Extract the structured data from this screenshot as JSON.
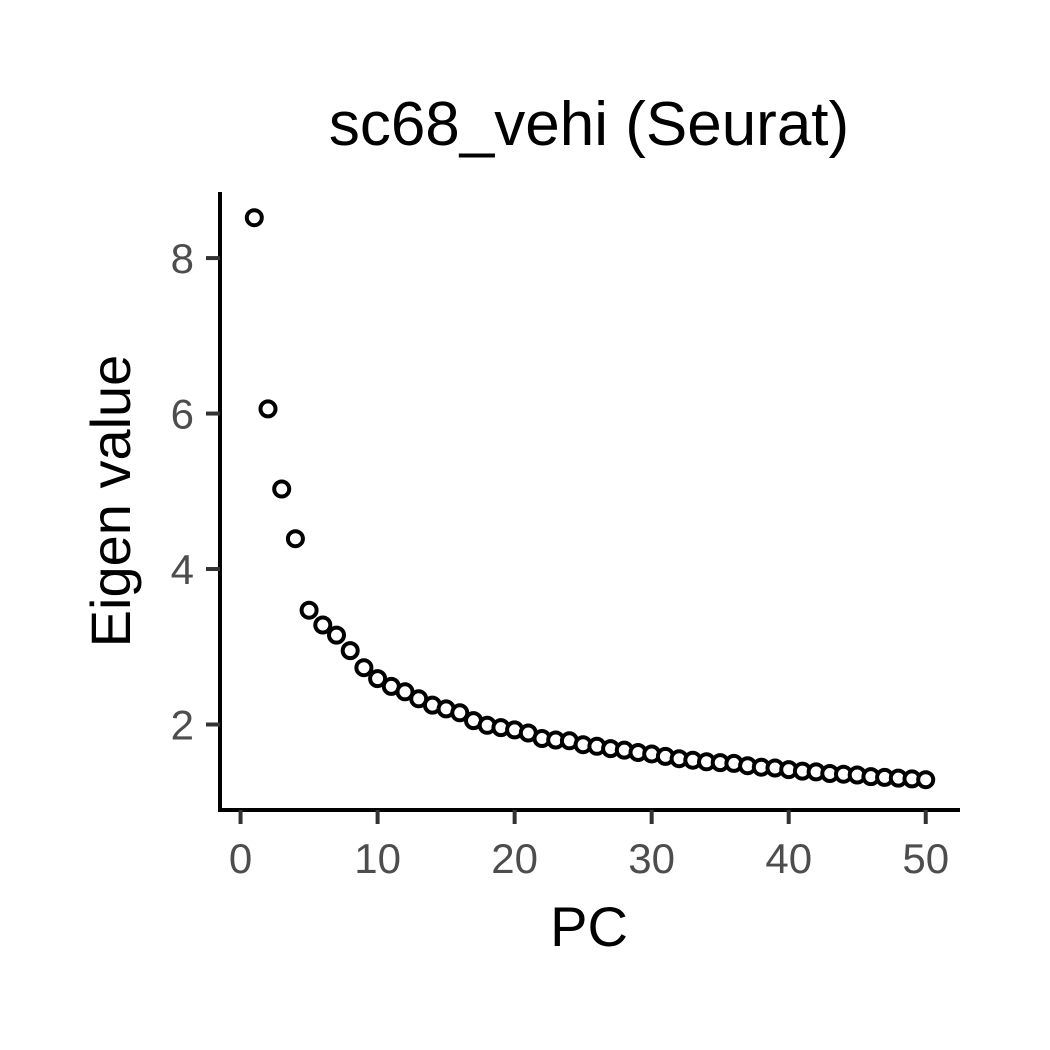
{
  "chart_data": {
    "type": "scatter",
    "title": "sc68_vehi (Seurat)",
    "xlabel": "PC",
    "ylabel": "Eigen value",
    "xlim": [
      -1.5,
      52.5
    ],
    "ylim": [
      0.9,
      8.85
    ],
    "x_ticks": [
      0,
      10,
      20,
      30,
      40,
      50
    ],
    "x_tick_labels": [
      "0",
      "10",
      "20",
      "30",
      "40",
      "50"
    ],
    "y_ticks": [
      2,
      4,
      6,
      8
    ],
    "y_tick_labels": [
      "2",
      "4",
      "6",
      "8"
    ],
    "grid": false,
    "legend": "none",
    "marker": "open-circle",
    "colors": {
      "point_stroke": "#000000",
      "point_fill": "#ffffff",
      "axis": "#000000",
      "tick_text": "#4d4d4d"
    },
    "x": [
      1,
      2,
      3,
      4,
      5,
      6,
      7,
      8,
      9,
      10,
      11,
      12,
      13,
      14,
      15,
      16,
      17,
      18,
      19,
      20,
      21,
      22,
      23,
      24,
      25,
      26,
      27,
      28,
      29,
      30,
      31,
      32,
      33,
      34,
      35,
      36,
      37,
      38,
      39,
      40,
      41,
      42,
      43,
      44,
      45,
      46,
      47,
      48,
      49,
      50
    ],
    "y": [
      8.52,
      6.06,
      5.03,
      4.39,
      3.47,
      3.28,
      3.15,
      2.95,
      2.73,
      2.59,
      2.49,
      2.42,
      2.33,
      2.25,
      2.2,
      2.15,
      2.05,
      1.99,
      1.96,
      1.93,
      1.89,
      1.82,
      1.8,
      1.79,
      1.74,
      1.72,
      1.69,
      1.67,
      1.64,
      1.62,
      1.59,
      1.56,
      1.54,
      1.52,
      1.51,
      1.5,
      1.47,
      1.45,
      1.44,
      1.42,
      1.4,
      1.39,
      1.37,
      1.36,
      1.35,
      1.33,
      1.32,
      1.31,
      1.3,
      1.29
    ]
  }
}
